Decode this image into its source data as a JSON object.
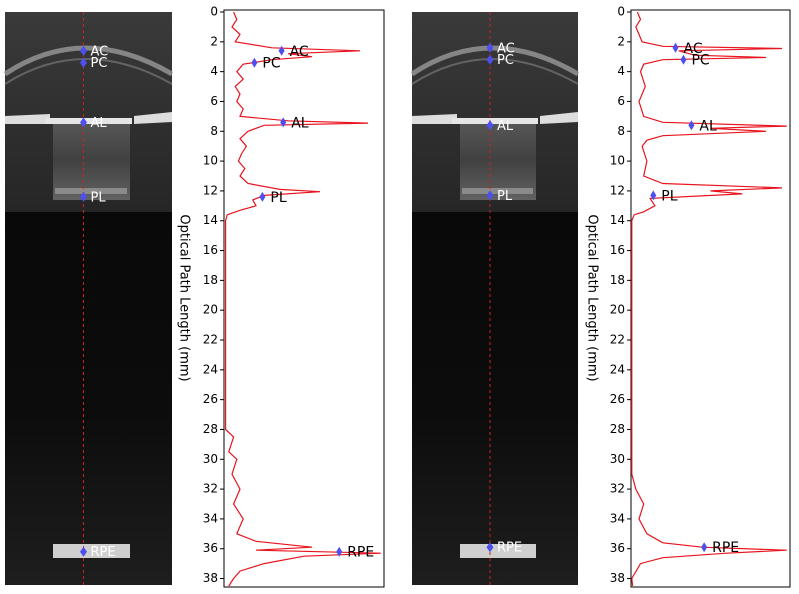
{
  "chart_data": [
    {
      "type": "line",
      "y_label": "Optical Path Length (mm)",
      "ylim": [
        0,
        38.5
      ],
      "yticks": [
        0,
        2,
        4,
        6,
        8,
        10,
        12,
        14,
        16,
        18,
        20,
        22,
        24,
        26,
        28,
        30,
        32,
        34,
        36,
        38
      ],
      "y_reversed": true,
      "intensity_lim": [
        0,
        1
      ],
      "profile": {
        "color": "#e8141e",
        "depth": [
          0,
          0.5,
          1,
          1.5,
          2,
          2.4,
          2.6,
          2.8,
          3,
          3.2,
          3.5,
          4,
          4.5,
          5,
          5.5,
          6,
          6.5,
          7,
          7.3,
          7.45,
          7.6,
          8,
          8.5,
          9,
          9.5,
          10,
          10.5,
          11,
          11.5,
          11.9,
          12.05,
          12.3,
          12.6,
          13,
          13.3,
          13.6,
          14,
          20,
          28,
          28.5,
          29.5,
          30,
          31,
          32,
          33,
          34,
          35,
          35.5,
          35.9,
          36.1,
          36.3,
          36.5,
          37,
          37.5,
          38,
          38.5
        ],
        "intensity": [
          0.06,
          0.08,
          0.05,
          0.1,
          0.07,
          0.3,
          0.85,
          0.4,
          0.55,
          0.3,
          0.12,
          0.08,
          0.12,
          0.07,
          0.1,
          0.08,
          0.12,
          0.1,
          0.4,
          0.9,
          0.25,
          0.15,
          0.1,
          0.14,
          0.11,
          0.09,
          0.13,
          0.1,
          0.15,
          0.35,
          0.6,
          0.25,
          0.18,
          0.2,
          0.1,
          0.02,
          0.01,
          0.01,
          0.01,
          0.06,
          0.03,
          0.08,
          0.05,
          0.1,
          0.06,
          0.12,
          0.08,
          0.2,
          0.55,
          0.2,
          0.98,
          0.5,
          0.25,
          0.1,
          0.06,
          0.03
        ]
      },
      "marker_color": "#4f4ff0",
      "markers": [
        {
          "label": "AC",
          "depth": 2.6,
          "intensity": 0.36
        },
        {
          "label": "PC",
          "depth": 3.4,
          "intensity": 0.19
        },
        {
          "label": "AL",
          "depth": 7.4,
          "intensity": 0.37
        },
        {
          "label": "PL",
          "depth": 12.4,
          "intensity": 0.24
        },
        {
          "label": "RPE",
          "depth": 36.2,
          "intensity": 0.72
        }
      ]
    },
    {
      "type": "line",
      "y_label": "Optical Path Length (mm)",
      "ylim": [
        0,
        38.5
      ],
      "yticks": [
        0,
        2,
        4,
        6,
        8,
        10,
        12,
        14,
        16,
        18,
        20,
        22,
        24,
        26,
        28,
        30,
        32,
        34,
        36,
        38
      ],
      "y_reversed": true,
      "intensity_lim": [
        0,
        1
      ],
      "profile": {
        "color": "#e8141e",
        "depth": [
          0,
          0.5,
          1,
          1.5,
          2,
          2.3,
          2.45,
          2.6,
          2.9,
          3.05,
          3.2,
          3.5,
          4,
          5,
          6,
          7,
          7.4,
          7.65,
          7.8,
          8,
          8.3,
          8.6,
          9,
          10,
          11,
          11.5,
          11.8,
          12,
          12.2,
          12.5,
          13,
          13.4,
          13.6,
          14,
          31,
          32,
          33,
          34,
          35,
          35.6,
          35.9,
          36.1,
          36.3,
          36.6,
          37,
          38,
          38.5
        ],
        "intensity": [
          0.04,
          0.06,
          0.03,
          0.05,
          0.07,
          0.2,
          0.95,
          0.3,
          0.4,
          0.85,
          0.2,
          0.08,
          0.06,
          0.09,
          0.05,
          0.08,
          0.2,
          0.98,
          0.5,
          0.85,
          0.2,
          0.1,
          0.07,
          0.1,
          0.08,
          0.2,
          0.95,
          0.5,
          0.7,
          0.12,
          0.15,
          0.08,
          0.02,
          0.005,
          0.005,
          0.03,
          0.08,
          0.05,
          0.1,
          0.2,
          0.45,
          0.98,
          0.6,
          0.2,
          0.06,
          0.005,
          0.01
        ]
      },
      "marker_color": "#4f4ff0",
      "markers": [
        {
          "label": "AC",
          "depth": 2.4,
          "intensity": 0.28
        },
        {
          "label": "PC",
          "depth": 3.2,
          "intensity": 0.33
        },
        {
          "label": "AL",
          "depth": 7.6,
          "intensity": 0.38
        },
        {
          "label": "PL",
          "depth": 12.3,
          "intensity": 0.14
        },
        {
          "label": "RPE",
          "depth": 35.9,
          "intensity": 0.46
        }
      ]
    }
  ]
}
